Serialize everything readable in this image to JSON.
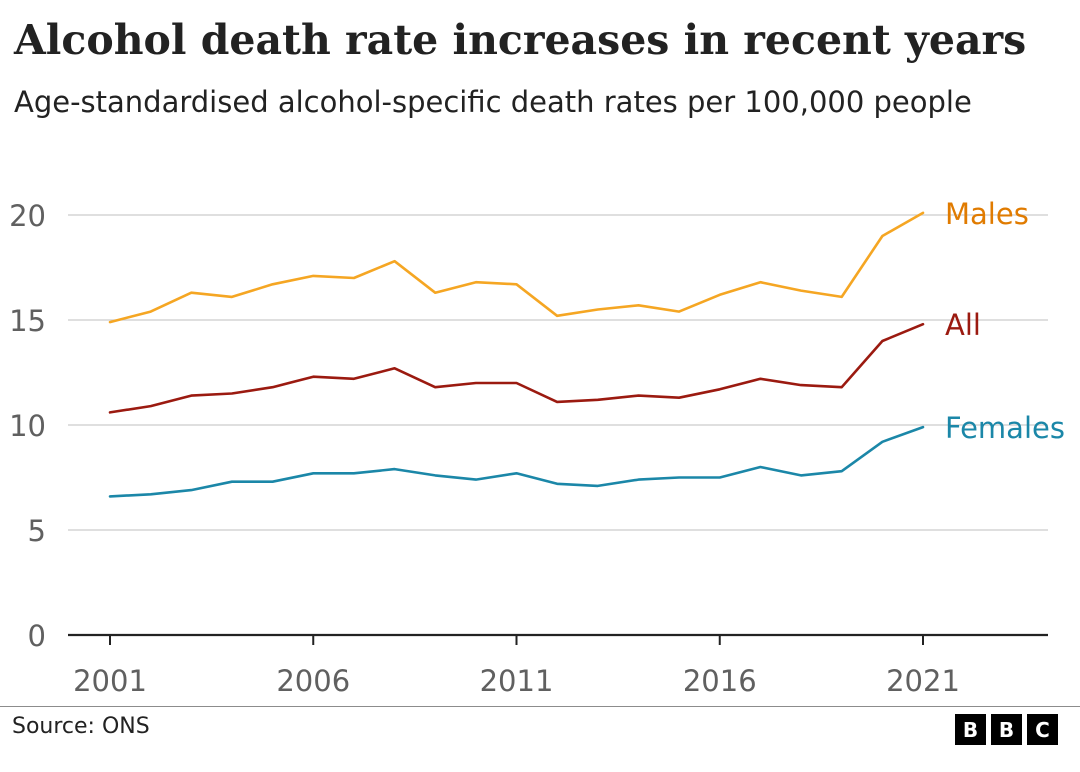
{
  "title": "Alcohol death rate increases in recent years",
  "subtitle": "Age-standardised alcohol-specific death rates per 100,000 people",
  "source": "Source: ONS",
  "logo": [
    "B",
    "B",
    "C"
  ],
  "chart_data": {
    "type": "line",
    "title": "Alcohol death rate increases in recent years",
    "subtitle": "Age-standardised alcohol-specific death rates per 100,000 people",
    "x": [
      2001,
      2002,
      2003,
      2004,
      2005,
      2006,
      2007,
      2008,
      2009,
      2010,
      2011,
      2012,
      2013,
      2014,
      2015,
      2016,
      2017,
      2018,
      2019,
      2020,
      2021
    ],
    "xticks": [
      2001,
      2006,
      2011,
      2016,
      2021
    ],
    "xticklabels": [
      "2001",
      "2006",
      "2011",
      "2016",
      "2021"
    ],
    "yticks": [
      0,
      5,
      10,
      15,
      20
    ],
    "yticklabels": [
      "0",
      "5",
      "10",
      "15",
      "20"
    ],
    "xlim": [
      2001,
      2024
    ],
    "ylim": [
      0,
      20
    ],
    "grid": true,
    "legend": "direct labels at line ends",
    "series": [
      {
        "name": "Males",
        "color": "#f5a623",
        "values": [
          14.9,
          15.4,
          16.3,
          16.1,
          16.7,
          17.1,
          17.0,
          17.8,
          16.3,
          16.8,
          16.7,
          15.2,
          15.5,
          15.7,
          15.4,
          16.2,
          16.8,
          16.4,
          16.1,
          19.0,
          20.1
        ]
      },
      {
        "name": "All",
        "color": "#9b1a10",
        "values": [
          10.6,
          10.9,
          11.4,
          11.5,
          11.8,
          12.3,
          12.2,
          12.7,
          11.8,
          12.0,
          12.0,
          11.1,
          11.2,
          11.4,
          11.3,
          11.7,
          12.2,
          11.9,
          11.8,
          14.0,
          14.8
        ]
      },
      {
        "name": "Females",
        "color": "#1b87a8",
        "values": [
          6.6,
          6.7,
          6.9,
          7.3,
          7.3,
          7.7,
          7.7,
          7.9,
          7.6,
          7.4,
          7.7,
          7.2,
          7.1,
          7.4,
          7.5,
          7.5,
          8.0,
          7.6,
          7.8,
          9.2,
          9.9
        ]
      }
    ],
    "label_colors": {
      "Males": "#e07b00",
      "All": "#9b1a10",
      "Females": "#1b87a8"
    }
  }
}
